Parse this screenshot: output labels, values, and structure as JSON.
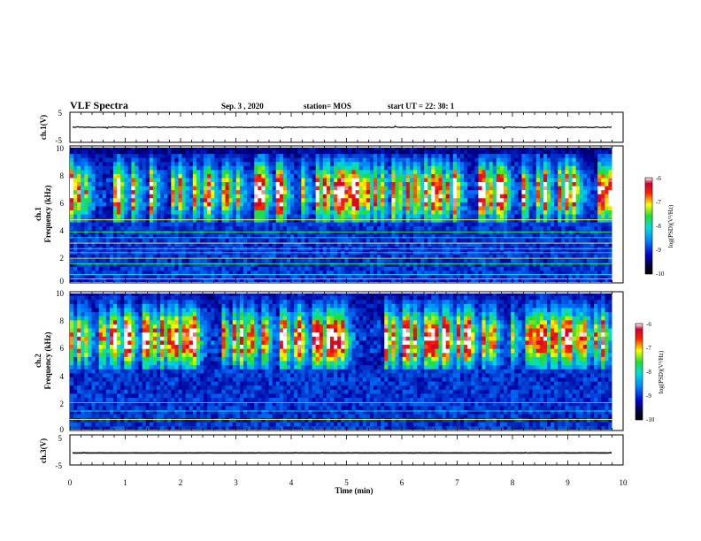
{
  "header": {
    "title": "VLF Spectra",
    "date": "Sep. 3 , 2020",
    "station": "station= MOS",
    "start": "start UT = 22: 30: 1"
  },
  "chart_data": [
    {
      "type": "line",
      "name": "ch1-waveform",
      "ylabel": "ch.1(V)",
      "ylim": [
        -5,
        5
      ],
      "y_ticks": [
        "5",
        "-5"
      ],
      "xlim": [
        0,
        10
      ],
      "trace_level": 0
    },
    {
      "type": "heatmap",
      "name": "ch1-spectrogram",
      "ylabel_channel": "ch.1",
      "ylabel": "Frequency (kHz)",
      "ylim": [
        0,
        10
      ],
      "y_ticks": [
        "0",
        "2",
        "4",
        "6",
        "8",
        "10"
      ],
      "xlim": [
        0,
        9.8
      ],
      "colorbar": {
        "label": "log(PSD)(V²/Hz)",
        "range": [
          -10,
          -6
        ],
        "ticks": [
          "-6",
          "-7",
          "-8",
          "-9",
          "-10"
        ]
      },
      "narrowband_lines_khz": [
        0.3,
        0.6,
        1.4,
        1.8,
        2.2,
        2.5,
        2.9,
        3.3,
        3.7,
        4.6
      ]
    },
    {
      "type": "heatmap",
      "name": "ch2-spectrogram",
      "ylabel_channel": "ch.2",
      "ylabel": "Frequency (kHz)",
      "ylim": [
        0,
        10
      ],
      "y_ticks": [
        "0",
        "2",
        "4",
        "6",
        "8",
        "10"
      ],
      "xlim": [
        0,
        9.8
      ],
      "colorbar": {
        "label": "log(PSD)(V²/Hz)",
        "range": [
          -10,
          -6
        ],
        "ticks": [
          "-6",
          "-7",
          "-8",
          "-9",
          "-10"
        ]
      },
      "narrowband_lines_khz": [
        0.8,
        1.4,
        2.0
      ]
    },
    {
      "type": "line",
      "name": "ch3-waveform",
      "ylabel": "ch.3(V)",
      "ylim": [
        -5,
        5
      ],
      "y_ticks": [
        "5",
        "-5"
      ],
      "xlim": [
        0,
        10
      ],
      "trace_level": -1
    }
  ],
  "x_axis": {
    "label": "Time (min)",
    "ticks": [
      "0",
      "1",
      "2",
      "3",
      "4",
      "5",
      "6",
      "7",
      "8",
      "9",
      "10"
    ]
  }
}
